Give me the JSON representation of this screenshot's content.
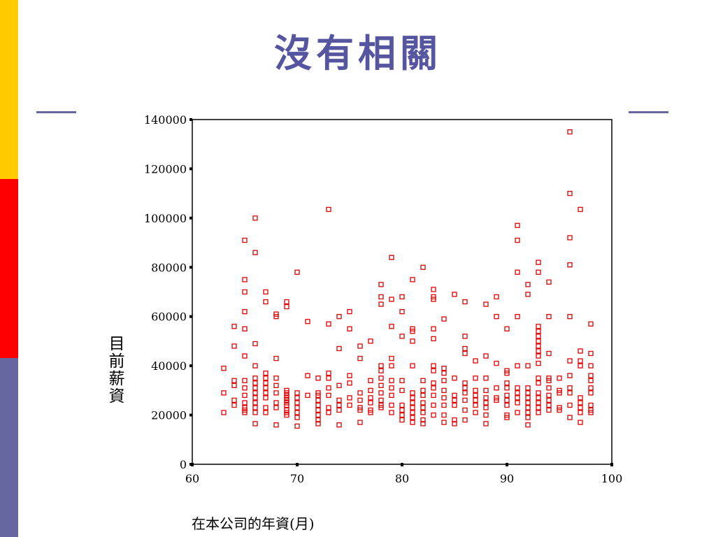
{
  "slide": {
    "title": "沒有相關",
    "colors": {
      "title": "#5555A0",
      "bar_top": "#FFCC00",
      "bar_middle": "#FF0000",
      "bar_bottom": "#6666A0",
      "marker": "#E00000"
    }
  },
  "chart_data": {
    "type": "scatter",
    "xlabel": "在本公司的年資(月)",
    "ylabel": "目前薪資",
    "xlim": [
      60,
      100
    ],
    "ylim": [
      0,
      140000
    ],
    "xticks": [
      "60",
      "70",
      "80",
      "90",
      "100"
    ],
    "yticks": [
      "0",
      "20000",
      "40000",
      "60000",
      "80000",
      "100000",
      "120000",
      "140000"
    ],
    "grid": false,
    "marker": "hollow-square",
    "points": [
      [
        63,
        39000
      ],
      [
        63,
        29000
      ],
      [
        63,
        21000
      ],
      [
        64,
        56000
      ],
      [
        64,
        48000
      ],
      [
        64,
        34000
      ],
      [
        64,
        32000
      ],
      [
        64,
        26000
      ],
      [
        64,
        24000
      ],
      [
        65,
        91000
      ],
      [
        65,
        75000
      ],
      [
        65,
        70000
      ],
      [
        65,
        62000
      ],
      [
        65,
        55000
      ],
      [
        65,
        44000
      ],
      [
        65,
        34000
      ],
      [
        65,
        31000
      ],
      [
        65,
        28000
      ],
      [
        65,
        25000
      ],
      [
        65,
        23000
      ],
      [
        65,
        22000
      ],
      [
        65,
        21000
      ],
      [
        66,
        100000
      ],
      [
        66,
        86000
      ],
      [
        66,
        49000
      ],
      [
        66,
        40000
      ],
      [
        66,
        35000
      ],
      [
        66,
        33000
      ],
      [
        66,
        31000
      ],
      [
        66,
        29000
      ],
      [
        66,
        27000
      ],
      [
        66,
        25000
      ],
      [
        66,
        23000
      ],
      [
        66,
        21000
      ],
      [
        66,
        16500
      ],
      [
        67,
        70000
      ],
      [
        67,
        66000
      ],
      [
        67,
        37000
      ],
      [
        67,
        35000
      ],
      [
        67,
        33000
      ],
      [
        67,
        31000
      ],
      [
        67,
        29000
      ],
      [
        67,
        27000
      ],
      [
        67,
        23000
      ],
      [
        67,
        21000
      ],
      [
        68,
        61000
      ],
      [
        68,
        60000
      ],
      [
        68,
        43000
      ],
      [
        68,
        35000
      ],
      [
        68,
        32000
      ],
      [
        68,
        29000
      ],
      [
        68,
        25000
      ],
      [
        68,
        23000
      ],
      [
        68,
        16000
      ],
      [
        69,
        66000
      ],
      [
        69,
        64000
      ],
      [
        69,
        30000
      ],
      [
        69,
        29000
      ],
      [
        69,
        28000
      ],
      [
        69,
        27000
      ],
      [
        69,
        26000
      ],
      [
        69,
        25000
      ],
      [
        69,
        24000
      ],
      [
        69,
        22000
      ],
      [
        69,
        21000
      ],
      [
        69,
        20000
      ],
      [
        70,
        78000
      ],
      [
        70,
        29000
      ],
      [
        70,
        27000
      ],
      [
        70,
        25000
      ],
      [
        70,
        23000
      ],
      [
        70,
        21000
      ],
      [
        70,
        19000
      ],
      [
        70,
        15500
      ],
      [
        71,
        58000
      ],
      [
        71,
        36000
      ],
      [
        71,
        28000
      ],
      [
        72,
        35000
      ],
      [
        72,
        29000
      ],
      [
        72,
        28000
      ],
      [
        72,
        26000
      ],
      [
        72,
        24000
      ],
      [
        72,
        22000
      ],
      [
        72,
        20000
      ],
      [
        72,
        18000
      ],
      [
        72,
        16500
      ],
      [
        73,
        103500
      ],
      [
        73,
        57000
      ],
      [
        73,
        37000
      ],
      [
        73,
        35000
      ],
      [
        73,
        31000
      ],
      [
        73,
        28000
      ],
      [
        73,
        23000
      ],
      [
        73,
        21000
      ],
      [
        74,
        60000
      ],
      [
        74,
        47000
      ],
      [
        74,
        32000
      ],
      [
        74,
        26000
      ],
      [
        74,
        24000
      ],
      [
        74,
        22000
      ],
      [
        74,
        16000
      ],
      [
        75,
        62000
      ],
      [
        75,
        55000
      ],
      [
        75,
        36000
      ],
      [
        75,
        33000
      ],
      [
        75,
        27000
      ],
      [
        75,
        24000
      ],
      [
        76,
        48000
      ],
      [
        76,
        43000
      ],
      [
        76,
        29000
      ],
      [
        76,
        26000
      ],
      [
        76,
        23000
      ],
      [
        76,
        22000
      ],
      [
        76,
        17000
      ],
      [
        77,
        50000
      ],
      [
        77,
        34000
      ],
      [
        77,
        30000
      ],
      [
        77,
        27000
      ],
      [
        77,
        25000
      ],
      [
        77,
        22000
      ],
      [
        77,
        21000
      ],
      [
        78,
        73000
      ],
      [
        78,
        68000
      ],
      [
        78,
        65000
      ],
      [
        78,
        40000
      ],
      [
        78,
        38000
      ],
      [
        78,
        35000
      ],
      [
        78,
        32000
      ],
      [
        78,
        29000
      ],
      [
        78,
        26000
      ],
      [
        78,
        24000
      ],
      [
        78,
        23000
      ],
      [
        79,
        84000
      ],
      [
        79,
        67000
      ],
      [
        79,
        56000
      ],
      [
        79,
        43000
      ],
      [
        79,
        40000
      ],
      [
        79,
        34000
      ],
      [
        79,
        31000
      ],
      [
        79,
        28000
      ],
      [
        79,
        24000
      ],
      [
        79,
        21000
      ],
      [
        80,
        68000
      ],
      [
        80,
        62000
      ],
      [
        80,
        52000
      ],
      [
        80,
        34000
      ],
      [
        80,
        30000
      ],
      [
        80,
        24000
      ],
      [
        80,
        22000
      ],
      [
        80,
        20000
      ],
      [
        80,
        18000
      ],
      [
        81,
        75000
      ],
      [
        81,
        55000
      ],
      [
        81,
        54000
      ],
      [
        81,
        50000
      ],
      [
        81,
        40000
      ],
      [
        81,
        29000
      ],
      [
        81,
        27000
      ],
      [
        81,
        25000
      ],
      [
        81,
        23000
      ],
      [
        81,
        21000
      ],
      [
        81,
        19000
      ],
      [
        81,
        17000
      ],
      [
        82,
        80000
      ],
      [
        82,
        34000
      ],
      [
        82,
        30000
      ],
      [
        82,
        28000
      ],
      [
        82,
        25000
      ],
      [
        82,
        23000
      ],
      [
        82,
        21000
      ],
      [
        82,
        18000
      ],
      [
        82,
        16500
      ],
      [
        83,
        71000
      ],
      [
        83,
        68000
      ],
      [
        83,
        67000
      ],
      [
        83,
        55000
      ],
      [
        83,
        51000
      ],
      [
        83,
        40000
      ],
      [
        83,
        38000
      ],
      [
        83,
        33000
      ],
      [
        83,
        31000
      ],
      [
        83,
        28000
      ],
      [
        83,
        24000
      ],
      [
        83,
        20000
      ],
      [
        84,
        59000
      ],
      [
        84,
        39000
      ],
      [
        84,
        37000
      ],
      [
        84,
        34000
      ],
      [
        84,
        30000
      ],
      [
        84,
        27000
      ],
      [
        84,
        24000
      ],
      [
        84,
        20000
      ],
      [
        84,
        17000
      ],
      [
        85,
        69000
      ],
      [
        85,
        35000
      ],
      [
        85,
        28000
      ],
      [
        85,
        26000
      ],
      [
        85,
        24000
      ],
      [
        85,
        18000
      ],
      [
        85,
        16500
      ],
      [
        86,
        66000
      ],
      [
        86,
        52000
      ],
      [
        86,
        47000
      ],
      [
        86,
        45000
      ],
      [
        86,
        33000
      ],
      [
        86,
        31000
      ],
      [
        86,
        29000
      ],
      [
        86,
        26000
      ],
      [
        86,
        22000
      ],
      [
        86,
        18000
      ],
      [
        87,
        42000
      ],
      [
        87,
        35000
      ],
      [
        87,
        30000
      ],
      [
        87,
        28000
      ],
      [
        87,
        26000
      ],
      [
        87,
        24000
      ],
      [
        87,
        21000
      ],
      [
        88,
        65000
      ],
      [
        88,
        44000
      ],
      [
        88,
        35000
      ],
      [
        88,
        30000
      ],
      [
        88,
        27000
      ],
      [
        88,
        25000
      ],
      [
        88,
        23000
      ],
      [
        88,
        20000
      ],
      [
        88,
        16500
      ],
      [
        89,
        68000
      ],
      [
        89,
        60000
      ],
      [
        89,
        41000
      ],
      [
        89,
        31000
      ],
      [
        89,
        27000
      ],
      [
        89,
        26000
      ],
      [
        90,
        55000
      ],
      [
        90,
        38000
      ],
      [
        90,
        37000
      ],
      [
        90,
        33000
      ],
      [
        90,
        31000
      ],
      [
        90,
        28000
      ],
      [
        90,
        26000
      ],
      [
        90,
        24000
      ],
      [
        90,
        20000
      ],
      [
        90,
        19000
      ],
      [
        91,
        97000
      ],
      [
        91,
        91000
      ],
      [
        91,
        78000
      ],
      [
        91,
        60000
      ],
      [
        91,
        40000
      ],
      [
        91,
        31000
      ],
      [
        91,
        29000
      ],
      [
        91,
        27000
      ],
      [
        91,
        25000
      ],
      [
        91,
        21000
      ],
      [
        92,
        73000
      ],
      [
        92,
        69000
      ],
      [
        92,
        40000
      ],
      [
        92,
        31000
      ],
      [
        92,
        29000
      ],
      [
        92,
        27000
      ],
      [
        92,
        25000
      ],
      [
        92,
        23000
      ],
      [
        92,
        21000
      ],
      [
        92,
        19000
      ],
      [
        92,
        16000
      ],
      [
        93,
        82000
      ],
      [
        93,
        78000
      ],
      [
        93,
        56000
      ],
      [
        93,
        54000
      ],
      [
        93,
        52000
      ],
      [
        93,
        50000
      ],
      [
        93,
        48000
      ],
      [
        93,
        46000
      ],
      [
        93,
        44000
      ],
      [
        93,
        41000
      ],
      [
        93,
        35000
      ],
      [
        93,
        33000
      ],
      [
        93,
        29000
      ],
      [
        93,
        27000
      ],
      [
        93,
        25000
      ],
      [
        93,
        23000
      ],
      [
        93,
        21000
      ],
      [
        94,
        74000
      ],
      [
        94,
        60000
      ],
      [
        94,
        45000
      ],
      [
        94,
        35000
      ],
      [
        94,
        34000
      ],
      [
        94,
        31000
      ],
      [
        94,
        28000
      ],
      [
        94,
        26000
      ],
      [
        94,
        24000
      ],
      [
        94,
        22000
      ],
      [
        95,
        35000
      ],
      [
        95,
        30000
      ],
      [
        95,
        29000
      ],
      [
        95,
        23000
      ],
      [
        95,
        22000
      ],
      [
        96,
        135000
      ],
      [
        96,
        110000
      ],
      [
        96,
        92000
      ],
      [
        96,
        81000
      ],
      [
        96,
        60000
      ],
      [
        96,
        42000
      ],
      [
        96,
        36000
      ],
      [
        96,
        31000
      ],
      [
        96,
        29000
      ],
      [
        96,
        24000
      ],
      [
        96,
        19000
      ],
      [
        97,
        103500
      ],
      [
        97,
        46000
      ],
      [
        97,
        42000
      ],
      [
        97,
        40000
      ],
      [
        97,
        27000
      ],
      [
        97,
        25000
      ],
      [
        97,
        23000
      ],
      [
        97,
        21000
      ],
      [
        97,
        17000
      ],
      [
        98,
        57000
      ],
      [
        98,
        45000
      ],
      [
        98,
        40000
      ],
      [
        98,
        36000
      ],
      [
        98,
        34000
      ],
      [
        98,
        31000
      ],
      [
        98,
        29000
      ],
      [
        98,
        24000
      ],
      [
        98,
        22000
      ],
      [
        98,
        21000
      ]
    ]
  }
}
